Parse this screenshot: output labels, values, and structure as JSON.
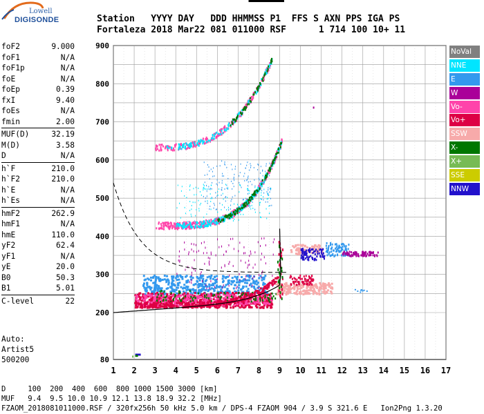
{
  "logo": {
    "line1": "Lowell",
    "line2": "DIGISONDE"
  },
  "header": {
    "line1": "Station   YYYY DAY   DDD HHMMSS P1  FFS S AXN PPS IGA PS",
    "line2": "Fortaleza 2018 Mar22 081 011000 RSF      1 714 100 10+ 11"
  },
  "params": {
    "group1": [
      {
        "name": "foF2",
        "value": "9.000"
      },
      {
        "name": "foF1",
        "value": "N/A"
      },
      {
        "name": "foF1p",
        "value": "N/A"
      },
      {
        "name": "foE",
        "value": "N/A"
      },
      {
        "name": "foEp",
        "value": "0.39"
      },
      {
        "name": "fxI",
        "value": "9.40"
      },
      {
        "name": "foEs",
        "value": "N/A"
      },
      {
        "name": "fmin",
        "value": "2.00"
      }
    ],
    "group2": [
      {
        "name": "MUF(D)",
        "value": "32.19"
      },
      {
        "name": "M(D)",
        "value": "3.58"
      },
      {
        "name": "D",
        "value": "N/A"
      }
    ],
    "group3": [
      {
        "name": "h`F",
        "value": "210.0"
      },
      {
        "name": "h`F2",
        "value": "210.0"
      },
      {
        "name": "h`E",
        "value": "N/A"
      },
      {
        "name": "h`Es",
        "value": "N/A"
      }
    ],
    "group4": [
      {
        "name": "hmF2",
        "value": "262.9"
      },
      {
        "name": "hmF1",
        "value": "N/A"
      },
      {
        "name": "hmE",
        "value": "110.0"
      },
      {
        "name": "yF2",
        "value": "62.4"
      },
      {
        "name": "yF1",
        "value": "N/A"
      },
      {
        "name": "yE",
        "value": "20.0"
      },
      {
        "name": "B0",
        "value": "50.3"
      },
      {
        "name": "B1",
        "value": "5.01"
      }
    ],
    "group5": [
      {
        "name": "C-level",
        "value": "22"
      }
    ]
  },
  "auto": {
    "line1": "Auto:",
    "line2": "Artist5",
    "line3": "500200"
  },
  "legend": [
    {
      "label": "NoVal",
      "bg": "#808080",
      "fg": "#ffffff"
    },
    {
      "label": "NNE",
      "bg": "#00e5ff",
      "fg": "#ffffff"
    },
    {
      "label": "E",
      "bg": "#3399ee",
      "fg": "#ffffff"
    },
    {
      "label": "W",
      "bg": "#aa0099",
      "fg": "#ffffff"
    },
    {
      "label": "Vo-",
      "bg": "#ff44aa",
      "fg": "#ffffff"
    },
    {
      "label": "Vo+",
      "bg": "#dd0044",
      "fg": "#ffffff"
    },
    {
      "label": "SSW",
      "bg": "#f7aaaa",
      "fg": "#ffffff"
    },
    {
      "label": "X-",
      "bg": "#007700",
      "fg": "#ffffff"
    },
    {
      "label": "X+",
      "bg": "#77bb55",
      "fg": "#ffffff"
    },
    {
      "label": "SSE",
      "bg": "#cccc00",
      "fg": "#ffffff"
    },
    {
      "label": "NNW",
      "bg": "#2211cc",
      "fg": "#ffffff"
    }
  ],
  "footer": {
    "line1": "D     100  200  400  600  800 1000 1500 3000 [km]",
    "line2": "MUF   9.4  9.5 10.0 10.9 12.1 13.8 18.9 32.2 [MHz]",
    "line3": "FZAOM_2018081011000.RSF / 320fx256h 50 kHz 5.0 km / DPS-4 FZAOM 904 / 3.9 S 321.6 E   Ion2Png 1.3.20"
  },
  "chart_data": {
    "type": "scatter",
    "xlim": [
      1,
      17
    ],
    "ylim": [
      80,
      900
    ],
    "x_ticks": [
      1,
      2,
      3,
      4,
      5,
      6,
      7,
      8,
      9,
      10,
      11,
      12,
      13,
      14,
      15,
      16,
      17
    ],
    "y_ticks": [
      80,
      200,
      300,
      400,
      500,
      600,
      700,
      800,
      900
    ],
    "grid": true,
    "legend_position": "right",
    "series": [
      {
        "name": "Vo+",
        "color": "#dd0044",
        "points": [
          [
            2.0,
            225
          ],
          [
            2.5,
            226
          ],
          [
            3.0,
            227
          ],
          [
            3.5,
            228
          ],
          [
            4.0,
            229
          ],
          [
            4.5,
            230
          ],
          [
            5.0,
            232
          ],
          [
            5.5,
            234
          ],
          [
            6.0,
            237
          ],
          [
            6.5,
            240
          ],
          [
            7.0,
            243
          ],
          [
            7.5,
            246
          ],
          [
            8.0,
            250
          ],
          [
            8.5,
            258
          ],
          [
            8.8,
            275
          ],
          [
            9.0,
            310
          ]
        ]
      },
      {
        "name": "X-",
        "color": "#007700",
        "points": [
          [
            7.8,
            250
          ],
          [
            8.2,
            258
          ],
          [
            8.6,
            270
          ],
          [
            8.9,
            295
          ],
          [
            9.1,
            330
          ],
          [
            9.2,
            380
          ]
        ]
      },
      {
        "name": "Vo-",
        "color": "#ff44aa",
        "points": [
          [
            3.0,
            435
          ],
          [
            4.0,
            445
          ],
          [
            5.0,
            460
          ],
          [
            6.0,
            478
          ],
          [
            7.0,
            500
          ],
          [
            7.8,
            525
          ],
          [
            8.4,
            555
          ],
          [
            8.8,
            595
          ],
          [
            9.0,
            640
          ],
          [
            3.0,
            635
          ],
          [
            4.0,
            650
          ],
          [
            5.0,
            672
          ],
          [
            6.0,
            700
          ],
          [
            7.0,
            735
          ],
          [
            7.8,
            775
          ],
          [
            8.3,
            820
          ],
          [
            8.6,
            860
          ]
        ]
      },
      {
        "name": "E",
        "color": "#3399ee",
        "points": [
          [
            2.5,
            260
          ],
          [
            3.0,
            265
          ],
          [
            4.0,
            270
          ],
          [
            5.0,
            268
          ],
          [
            6.0,
            272
          ],
          [
            7.0,
            275
          ],
          [
            11.5,
            380
          ],
          [
            12.0,
            370
          ],
          [
            12.5,
            365
          ]
        ]
      },
      {
        "name": "NNW",
        "color": "#2211cc",
        "points": [
          [
            10.0,
            350
          ],
          [
            10.5,
            355
          ],
          [
            11.0,
            360
          ],
          [
            11.2,
            345
          ]
        ]
      },
      {
        "name": "W",
        "color": "#aa0099",
        "points": [
          [
            12.0,
            355
          ],
          [
            12.5,
            355
          ],
          [
            13.0,
            355
          ],
          [
            13.5,
            356
          ],
          [
            7.0,
            360
          ],
          [
            7.5,
            340
          ]
        ]
      },
      {
        "name": "SSW",
        "color": "#f7aaaa",
        "points": [
          [
            9.0,
            280
          ],
          [
            9.5,
            275
          ],
          [
            10.0,
            265
          ],
          [
            10.5,
            260
          ],
          [
            11.0,
            258
          ],
          [
            9.5,
            370
          ],
          [
            10.0,
            365
          ]
        ]
      }
    ]
  }
}
